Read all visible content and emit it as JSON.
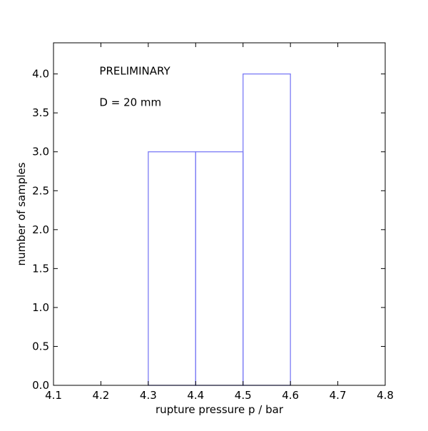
{
  "chart_data": {
    "type": "bar",
    "subtype": "histogram-step",
    "bins": [
      {
        "x_start": 4.3,
        "x_end": 4.4,
        "value": 3
      },
      {
        "x_start": 4.4,
        "x_end": 4.5,
        "value": 3
      },
      {
        "x_start": 4.5,
        "x_end": 4.6,
        "value": 4
      }
    ],
    "xlabel": "rupture pressure p / bar",
    "ylabel": "number of samples",
    "xlim": [
      4.1,
      4.8
    ],
    "ylim": [
      0.0,
      4.4
    ],
    "xticks": [
      "4.1",
      "4.2",
      "4.3",
      "4.4",
      "4.5",
      "4.6",
      "4.7",
      "4.8"
    ],
    "yticks": [
      "0.0",
      "0.5",
      "1.0",
      "1.5",
      "2.0",
      "2.5",
      "3.0",
      "3.5",
      "4.0"
    ],
    "annotations": [
      {
        "text": "PRELIMINARY",
        "x": 4.2,
        "y": 4.0
      },
      {
        "text": "D = 20 mm",
        "x": 4.2,
        "y": 3.6
      }
    ],
    "grid": false,
    "legend": "none",
    "bar_edge_color": "#7b7bf5",
    "axis_color": "#000000"
  }
}
